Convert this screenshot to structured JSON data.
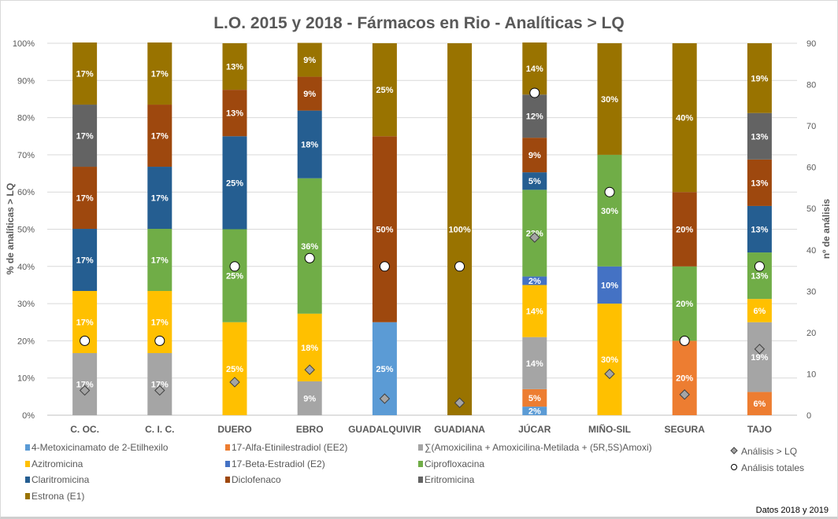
{
  "chart_data": {
    "type": "bar",
    "stacked": "percent",
    "title": "L.O. 2015 y 2018 - Fármacos en Rio - Analíticas > LQ",
    "ylabel": "% de analíticas > LQ",
    "y2label": "nº de análisis",
    "ylim": [
      0,
      100
    ],
    "y2lim": [
      0,
      90
    ],
    "yticks": [
      "0%",
      "10%",
      "20%",
      "30%",
      "40%",
      "50%",
      "60%",
      "70%",
      "80%",
      "90%",
      "100%"
    ],
    "y2ticks": [
      "0",
      "10",
      "20",
      "30",
      "40",
      "50",
      "60",
      "70",
      "80",
      "90"
    ],
    "grid": true,
    "legend_position": "bottom",
    "footnote": "Datos 2018 y 2019",
    "categories": [
      "C. OC.",
      "C. I. C.",
      "DUERO",
      "EBRO",
      "GUADALQUIVIR",
      "GUADIANA",
      "JÚCAR",
      "MIÑO-SIL",
      "SEGURA",
      "TAJO"
    ],
    "series": [
      {
        "name": "4-Metoxicinamato de 2-Etilhexilo",
        "color": "#5B9BD5",
        "values": [
          0,
          0,
          0,
          0,
          25,
          0,
          2.3,
          0,
          0,
          0
        ]
      },
      {
        "name": "17-Alfa-Etinilestradiol (EE2)",
        "color": "#ED7D31",
        "values": [
          0,
          0,
          0,
          0,
          0,
          0,
          4.7,
          0,
          20,
          6.25
        ]
      },
      {
        "name": "∑(Amoxicilina + Amoxicilina-Metilada + (5R,5S)Amoxi)",
        "color": "#A5A5A5",
        "values": [
          16.7,
          16.7,
          0,
          9.1,
          0,
          0,
          14,
          0,
          0,
          18.75
        ]
      },
      {
        "name": "Azitromicina",
        "color": "#FFC000",
        "values": [
          16.7,
          16.7,
          25,
          18.2,
          0,
          0,
          14,
          30,
          0,
          6.25
        ]
      },
      {
        "name": "17-Beta-Estradiol (E2)",
        "color": "#4472C4",
        "values": [
          0,
          0,
          0,
          0,
          0,
          0,
          2.3,
          10,
          0,
          0
        ]
      },
      {
        "name": "Ciprofloxacina",
        "color": "#70AD47",
        "values": [
          0,
          16.7,
          25,
          36.4,
          0,
          0,
          23.3,
          30,
          20,
          12.5
        ]
      },
      {
        "name": "Claritromicina",
        "color": "#255E91",
        "values": [
          16.7,
          16.7,
          25,
          18.2,
          0,
          0,
          4.7,
          0,
          0,
          12.5
        ]
      },
      {
        "name": "Diclofenaco",
        "color": "#9E480E",
        "values": [
          16.7,
          16.7,
          12.5,
          9.1,
          50,
          0,
          9.3,
          0,
          20,
          12.5
        ]
      },
      {
        "name": "Eritromicina",
        "color": "#636363",
        "values": [
          16.7,
          0,
          0,
          0,
          0,
          0,
          11.6,
          0,
          0,
          12.5
        ]
      },
      {
        "name": "Estrona (E1)",
        "color": "#997300",
        "values": [
          16.7,
          16.7,
          12.5,
          9.1,
          25,
          100,
          14,
          30,
          40,
          18.75
        ]
      }
    ],
    "markers": [
      {
        "name": "Análisis > LQ",
        "shape": "diamond",
        "axis": "secondary",
        "values": [
          6,
          6,
          8,
          11,
          4,
          3,
          43,
          10,
          5,
          16
        ]
      },
      {
        "name": "Análisis totales",
        "shape": "circle",
        "axis": "secondary",
        "values": [
          18,
          18,
          36,
          38,
          36,
          36,
          78,
          54,
          18,
          36
        ]
      }
    ]
  }
}
